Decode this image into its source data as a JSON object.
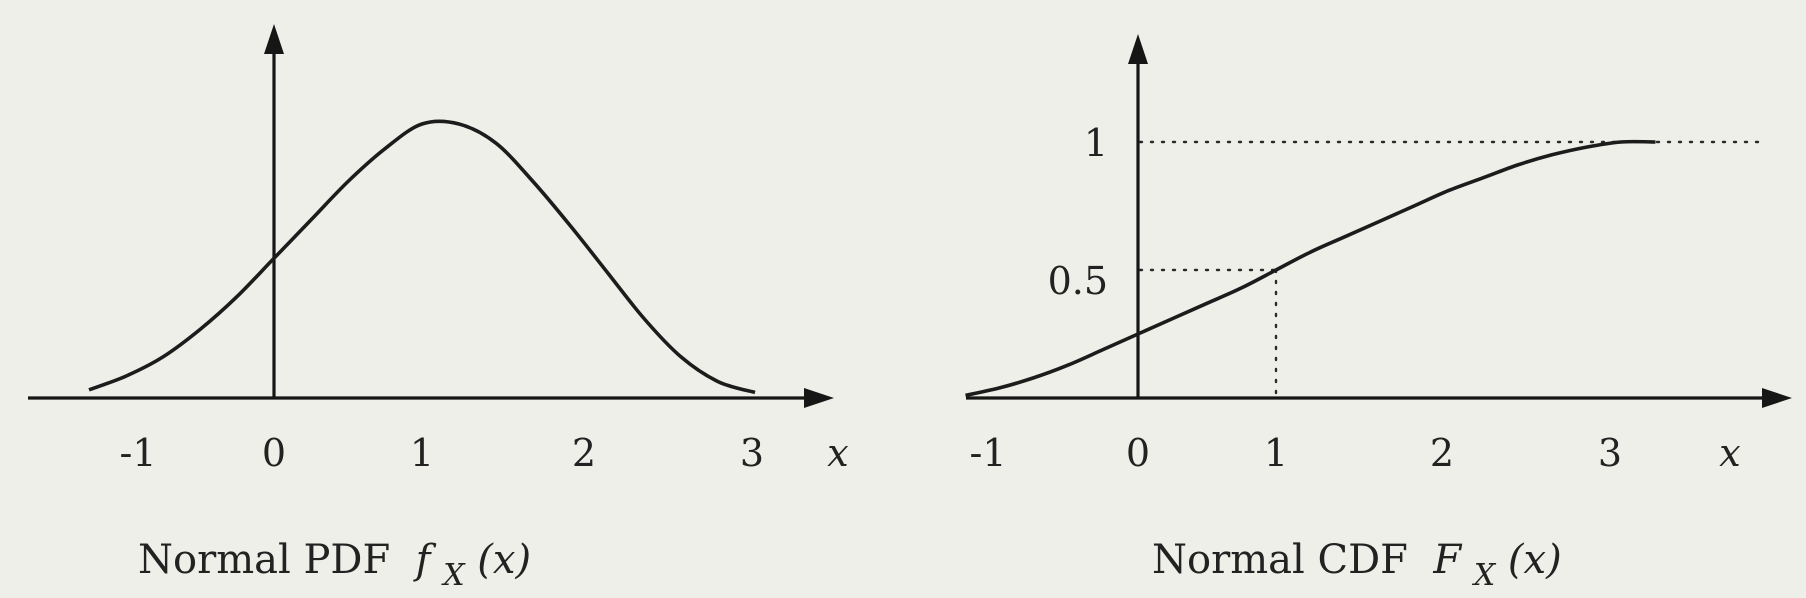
{
  "chart_data": [
    {
      "type": "line",
      "title": "",
      "caption": {
        "prefix": "Normal PDF ",
        "func": "f",
        "sub": "X",
        "arg": "(x)"
      },
      "xlabel": "x",
      "ylabel": "",
      "xlim": [
        -1.4,
        3.4
      ],
      "xticks": [
        "-1",
        "0",
        "1",
        "2",
        "3"
      ],
      "yticks": [],
      "series": [
        {
          "x": [
            -1.25,
            -1.0,
            -0.75,
            -0.5,
            -0.25,
            0.0,
            0.25,
            0.5,
            0.75,
            1.0,
            1.25,
            1.5,
            1.75,
            2.0,
            2.25,
            2.5,
            2.75,
            3.0,
            3.25
          ],
          "y": [
            0.03,
            0.08,
            0.15,
            0.25,
            0.37,
            0.51,
            0.65,
            0.79,
            0.91,
            1.0,
            1.0,
            0.93,
            0.79,
            0.63,
            0.46,
            0.29,
            0.15,
            0.06,
            0.02
          ]
        }
      ]
    },
    {
      "type": "line",
      "title": "",
      "caption": {
        "prefix": "Normal CDF ",
        "func": "F",
        "sub": "X",
        "arg": "(x)"
      },
      "xlabel": "x",
      "ylabel": "",
      "xlim": [
        -1.3,
        4.2
      ],
      "ylim": [
        0,
        1
      ],
      "xticks": [
        "-1",
        "0",
        "1",
        "2",
        "3"
      ],
      "yticks": [
        "0.5",
        "1"
      ],
      "reference_lines": [
        {
          "orientation": "horizontal",
          "value": 1
        },
        {
          "orientation": "horizontal",
          "value": 0.5
        },
        {
          "orientation": "vertical",
          "value": 1
        }
      ],
      "series": [
        {
          "x": [
            -1.25,
            -1.0,
            -0.75,
            -0.5,
            -0.25,
            0.0,
            0.25,
            0.5,
            0.75,
            1.0,
            1.25,
            1.5,
            1.75,
            2.0,
            2.25,
            2.5,
            2.75,
            3.0,
            3.25,
            3.5,
            3.75
          ],
          "y": [
            0.01,
            0.04,
            0.08,
            0.13,
            0.19,
            0.25,
            0.31,
            0.37,
            0.43,
            0.5,
            0.57,
            0.63,
            0.69,
            0.75,
            0.81,
            0.86,
            0.91,
            0.95,
            0.98,
            1.0,
            1.0
          ]
        }
      ]
    }
  ]
}
